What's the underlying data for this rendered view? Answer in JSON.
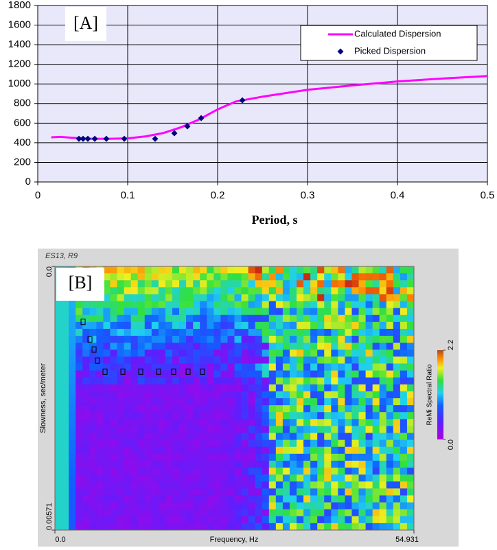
{
  "chart_data": [
    {
      "type": "line",
      "annotation": "[A]",
      "xlabel": "Period, s",
      "xlim": [
        0,
        0.5
      ],
      "xticks": [
        0,
        0.1,
        0.2,
        0.3,
        0.4,
        0.5
      ],
      "ylim": [
        0,
        1800
      ],
      "yticks": [
        0,
        200,
        400,
        600,
        800,
        1000,
        1200,
        1400,
        1600,
        1800
      ],
      "grid": true,
      "legend": "upper right",
      "series": [
        {
          "name": "Calculated Dispersion",
          "type": "line",
          "color": "#ff00ff",
          "x": [
            0.015,
            0.025,
            0.04,
            0.06,
            0.08,
            0.1,
            0.12,
            0.14,
            0.16,
            0.18,
            0.2,
            0.22,
            0.25,
            0.3,
            0.35,
            0.4,
            0.45,
            0.5
          ],
          "values": [
            455,
            460,
            450,
            440,
            440,
            445,
            465,
            500,
            560,
            640,
            740,
            820,
            870,
            940,
            985,
            1025,
            1055,
            1080
          ]
        },
        {
          "name": "Picked Dispersion",
          "type": "scatter",
          "color": "#000080",
          "x": [
            0.0458,
            0.0504,
            0.0557,
            0.0634,
            0.0763,
            0.0962,
            0.1305,
            0.1519,
            0.1664,
            0.1817,
            0.2275
          ],
          "values": [
            440,
            440,
            440,
            440,
            440,
            440,
            440,
            497,
            567,
            651,
            833
          ]
        }
      ]
    },
    {
      "type": "scatter",
      "annotation": "[B]",
      "title": "ES13, R9",
      "xlabel": "Frequency, Hz",
      "ylabel": "Slowness, sec/meter",
      "xlim": [
        0,
        54.931
      ],
      "xticks": [
        {
          "value": 0,
          "label": "0.0"
        },
        54.931
      ],
      "ylim": [
        0,
        0.00571
      ],
      "yticks": [
        {
          "value": 0,
          "label": "0.0"
        },
        0.00571
      ],
      "y_inverted": true,
      "colorbar": {
        "label": "ReMi Spectral Ratio",
        "ticks": [
          {
            "value": 0,
            "label": "0.0"
          },
          2.2
        ]
      },
      "series": [
        {
          "name": "picks",
          "color": "#000000",
          "x": [
            4.31,
            5.36,
            5.99,
            6.51,
            7.67,
            10.4,
            13.13,
            15.86,
            18.17,
            20.38,
            22.58
          ],
          "values": [
            0.0012,
            0.00158,
            0.0018,
            0.00204,
            0.00228,
            0.00228,
            0.00228,
            0.00228,
            0.00228,
            0.00228,
            0.00228
          ]
        }
      ]
    }
  ]
}
